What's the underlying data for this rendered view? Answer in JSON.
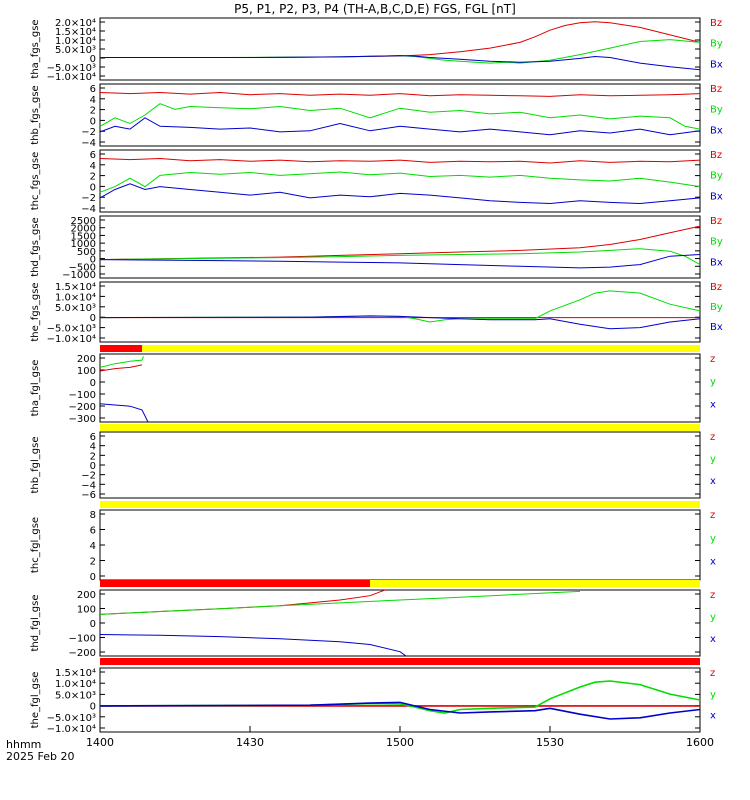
{
  "title": "P5, P1, P2, P3, P4 (TH-A,B,C,D,E) FGS, FGL [nT]",
  "footer": {
    "label1": "hhmm",
    "label2": "2025 Feb 20"
  },
  "colors": {
    "x": "#0000cc",
    "y": "#00dd00",
    "z": "#dd0000",
    "bar_yellow": "#ffff00",
    "bar_red": "#ff0000"
  },
  "chart_data": [
    {
      "type": "line",
      "ylabel": "tha_fgs_gse",
      "yticks": [
        "2.0×10⁴",
        "1.5×10⁴",
        "1.0×10⁴",
        "5.0×10³",
        "0",
        "−5.0×10³",
        "−1.0×10⁴"
      ],
      "ylim": [
        -12000,
        21000
      ],
      "legend": [
        "Bz",
        "By",
        "Bx"
      ],
      "series": [
        {
          "name": "Bz",
          "x": [
            1400,
            1420,
            1440,
            1460,
            1480,
            1500,
            1510,
            1520,
            1530,
            1540,
            1545,
            1550,
            1555,
            1560,
            1565,
            1570,
            1580,
            1590,
            1600
          ],
          "y": [
            0,
            0,
            0,
            50,
            300,
            800,
            1500,
            3000,
            5000,
            8000,
            11000,
            14500,
            17000,
            18500,
            19000,
            18500,
            16000,
            12000,
            8000
          ]
        },
        {
          "name": "By",
          "x": [
            1400,
            1440,
            1480,
            1495,
            1500,
            1505,
            1510,
            1515,
            1520,
            1530,
            1535,
            1540,
            1550,
            1560,
            1570,
            1580,
            1590,
            1600
          ],
          "y": [
            0,
            0,
            300,
            800,
            1000,
            500,
            -500,
            -1500,
            -2000,
            -3000,
            -2500,
            -3000,
            -1500,
            1500,
            5000,
            8500,
            9500,
            8000
          ]
        },
        {
          "name": "Bx",
          "x": [
            1400,
            1450,
            1480,
            1495,
            1500,
            1505,
            1510,
            1520,
            1530,
            1540,
            1550,
            1560,
            1565,
            1570,
            1580,
            1590,
            1600
          ],
          "y": [
            0,
            0,
            300,
            800,
            1000,
            700,
            0,
            -1000,
            -2000,
            -2500,
            -2000,
            -500,
            500,
            0,
            -3000,
            -5000,
            -6500
          ]
        }
      ]
    },
    {
      "type": "line",
      "ylabel": "thb_fgs_gse",
      "yticks": [
        "6",
        "4",
        "2",
        "0",
        "−2",
        "−4"
      ],
      "ylim": [
        -4.5,
        6.5
      ],
      "legend": [
        "Bz",
        "By",
        "Bx"
      ],
      "series": [
        {
          "name": "Bz",
          "x": [
            1400,
            1410,
            1420,
            1430,
            1440,
            1450,
            1460,
            1470,
            1480,
            1490,
            1500,
            1510,
            1520,
            1530,
            1540,
            1550,
            1560,
            1570,
            1580,
            1590,
            1600
          ],
          "y": [
            5,
            4.8,
            5,
            4.7,
            5,
            4.6,
            4.8,
            4.5,
            4.7,
            4.5,
            4.8,
            4.4,
            4.6,
            4.5,
            4.4,
            4.3,
            4.6,
            4.4,
            4.5,
            4.6,
            4.8
          ]
        },
        {
          "name": "By",
          "x": [
            1400,
            1405,
            1410,
            1415,
            1420,
            1425,
            1430,
            1440,
            1450,
            1460,
            1470,
            1480,
            1490,
            1500,
            1510,
            1520,
            1530,
            1540,
            1550,
            1560,
            1570,
            1580,
            1590,
            1595,
            1600
          ],
          "y": [
            -1,
            0.5,
            -0.5,
            1,
            3,
            2,
            2.5,
            2.3,
            2.1,
            2.5,
            1.8,
            2.2,
            0.5,
            2.2,
            1.5,
            1.8,
            1.2,
            1.5,
            0.5,
            1,
            0.3,
            0.8,
            0.5,
            -1,
            -1.5
          ]
        },
        {
          "name": "Bx",
          "x": [
            1400,
            1405,
            1410,
            1415,
            1420,
            1430,
            1440,
            1450,
            1460,
            1470,
            1480,
            1490,
            1500,
            1510,
            1520,
            1530,
            1540,
            1550,
            1560,
            1570,
            1580,
            1590,
            1600
          ],
          "y": [
            -2,
            -1,
            -1.5,
            0.5,
            -1,
            -1.2,
            -1.5,
            -1.3,
            -2,
            -1.8,
            -0.5,
            -1.8,
            -1,
            -1.5,
            -2,
            -1.5,
            -2,
            -2.5,
            -1.8,
            -2.2,
            -1.5,
            -2.5,
            -1.8
          ]
        }
      ]
    },
    {
      "type": "line",
      "ylabel": "thc_fgs_gse",
      "yticks": [
        "6",
        "4",
        "2",
        "0",
        "−2",
        "−4"
      ],
      "ylim": [
        -4.5,
        6.5
      ],
      "legend": [
        "Bz",
        "By",
        "Bx"
      ],
      "series": [
        {
          "name": "Bz",
          "x": [
            1400,
            1410,
            1420,
            1430,
            1440,
            1450,
            1460,
            1470,
            1480,
            1490,
            1500,
            1510,
            1520,
            1530,
            1540,
            1550,
            1560,
            1570,
            1580,
            1590,
            1600
          ],
          "y": [
            5,
            4.8,
            5,
            4.6,
            4.8,
            4.5,
            4.7,
            4.4,
            4.6,
            4.5,
            4.7,
            4.3,
            4.5,
            4.4,
            4.5,
            4.2,
            4.6,
            4.3,
            4.5,
            4.4,
            4.7
          ]
        },
        {
          "name": "By",
          "x": [
            1400,
            1405,
            1410,
            1415,
            1420,
            1430,
            1440,
            1450,
            1460,
            1470,
            1480,
            1490,
            1500,
            1510,
            1520,
            1530,
            1540,
            1550,
            1560,
            1570,
            1580,
            1590,
            1600
          ],
          "y": [
            -1,
            0,
            1.5,
            0,
            2,
            2.5,
            2.2,
            2.5,
            2,
            2.3,
            2.6,
            2.1,
            2.4,
            1.8,
            2,
            1.7,
            2,
            1.5,
            1.2,
            1,
            1.5,
            0.8,
            0
          ]
        },
        {
          "name": "Bx",
          "x": [
            1400,
            1405,
            1410,
            1415,
            1420,
            1430,
            1440,
            1450,
            1460,
            1470,
            1480,
            1490,
            1500,
            1510,
            1520,
            1530,
            1540,
            1550,
            1560,
            1570,
            1580,
            1590,
            1600
          ],
          "y": [
            -2,
            -0.5,
            0.5,
            -0.5,
            0,
            -0.5,
            -1,
            -1.5,
            -1,
            -2,
            -1.5,
            -1.8,
            -1.2,
            -1.5,
            -2,
            -2.5,
            -2.8,
            -3,
            -2.5,
            -2.8,
            -3,
            -2.5,
            -2
          ]
        }
      ]
    },
    {
      "type": "line",
      "ylabel": "thd_fgs_gse",
      "yticks": [
        "2500",
        "2000",
        "1500",
        "1000",
        "500",
        "0",
        "−500",
        "−1000"
      ],
      "ylim": [
        -1100,
        2600
      ],
      "legend": [
        "Bz",
        "By",
        "Bx"
      ],
      "series": [
        {
          "name": "Bz",
          "x": [
            1400,
            1420,
            1440,
            1460,
            1480,
            1500,
            1520,
            1540,
            1560,
            1570,
            1580,
            1590,
            1600
          ],
          "y": [
            0,
            50,
            100,
            150,
            250,
            350,
            450,
            550,
            700,
            900,
            1200,
            1600,
            2000
          ]
        },
        {
          "name": "By",
          "x": [
            1400,
            1420,
            1440,
            1460,
            1480,
            1500,
            1520,
            1540,
            1560,
            1570,
            1580,
            1590,
            1595,
            1600
          ],
          "y": [
            0,
            40,
            80,
            120,
            180,
            250,
            300,
            350,
            450,
            550,
            650,
            500,
            200,
            -300
          ]
        },
        {
          "name": "Bx",
          "x": [
            1400,
            1420,
            1440,
            1460,
            1480,
            1500,
            1520,
            1540,
            1560,
            1570,
            1580,
            1590,
            1600
          ],
          "y": [
            0,
            -30,
            -60,
            -100,
            -150,
            -200,
            -300,
            -400,
            -500,
            -450,
            -300,
            200,
            300
          ]
        }
      ]
    },
    {
      "type": "line",
      "ylabel": "the_fgs_gse",
      "yticks": [
        "1.5×10⁴",
        "1.0×10⁴",
        "5.0×10³",
        "0",
        "−5.0×10³",
        "−1.0×10⁴"
      ],
      "ylim": [
        -11000,
        16000
      ],
      "legend": [
        "Bz",
        "By",
        "Bx"
      ],
      "series": [
        {
          "name": "Bz",
          "x": [
            1400,
            1500,
            1600
          ],
          "y": [
            0,
            0,
            0
          ]
        },
        {
          "name": "By",
          "x": [
            1400,
            1470,
            1490,
            1500,
            1505,
            1510,
            1515,
            1520,
            1530,
            1545,
            1550,
            1560,
            1565,
            1570,
            1580,
            1590,
            1600
          ],
          "y": [
            0,
            200,
            800,
            500,
            -500,
            -2000,
            -1000,
            -500,
            -500,
            -500,
            3000,
            8000,
            11000,
            12000,
            11000,
            6000,
            3000
          ]
        },
        {
          "name": "Bx",
          "x": [
            1400,
            1470,
            1490,
            1500,
            1510,
            1520,
            1530,
            1545,
            1550,
            1560,
            1570,
            1580,
            1590,
            1600
          ],
          "y": [
            0,
            200,
            700,
            500,
            0,
            -500,
            -1000,
            -1000,
            -500,
            -3000,
            -5000,
            -4500,
            -2000,
            -500
          ]
        }
      ]
    },
    {
      "type": "line",
      "ylabel": "tha_fgl_gse",
      "yticks": [
        "200",
        "100",
        "0",
        "−100",
        "−200",
        "−300"
      ],
      "ylim": [
        -330,
        230
      ],
      "legend": [
        "z",
        "y",
        "x"
      ],
      "series": [
        {
          "name": "z",
          "x": [
            1400,
            1405,
            1410,
            1414
          ],
          "y": [
            90,
            110,
            120,
            140
          ]
        },
        {
          "name": "y",
          "x": [
            1400,
            1405,
            1410,
            1414,
            1414.5
          ],
          "y": [
            120,
            150,
            170,
            180,
            210
          ]
        },
        {
          "name": "x",
          "x": [
            1400,
            1405,
            1410,
            1414,
            1416
          ],
          "y": [
            -180,
            -190,
            -200,
            -230,
            -330
          ]
        }
      ],
      "status_bar": [
        {
          "from": 1400,
          "to": 1414,
          "color": "red"
        },
        {
          "from": 1414,
          "to": 1600,
          "color": "yellow"
        }
      ]
    },
    {
      "type": "line",
      "ylabel": "thb_fgl_gse",
      "yticks": [
        "6",
        "4",
        "2",
        "0",
        "−2",
        "−4",
        "−6"
      ],
      "ylim": [
        -7,
        7
      ],
      "legend": [
        "z",
        "y",
        "x"
      ],
      "series": [],
      "status_bar": [
        {
          "from": 1400,
          "to": 1600,
          "color": "yellow"
        }
      ]
    },
    {
      "type": "line",
      "ylabel": "thc_fgl_gse",
      "yticks": [
        "8",
        "6",
        "4",
        "2",
        "0"
      ],
      "ylim": [
        -1,
        9
      ],
      "legend": [
        "z",
        "y",
        "x"
      ],
      "series": [],
      "status_bar": [
        {
          "from": 1400,
          "to": 1600,
          "color": "yellow"
        }
      ]
    },
    {
      "type": "line",
      "ylabel": "thd_fgl_gse",
      "yticks": [
        "200",
        "100",
        "0",
        "−100",
        "−200"
      ],
      "ylim": [
        -230,
        230
      ],
      "legend": [
        "z",
        "y",
        "x"
      ],
      "series": [
        {
          "name": "z",
          "x": [
            1400,
            1420,
            1440,
            1460,
            1480,
            1490,
            1495
          ],
          "y": [
            60,
            80,
            100,
            120,
            160,
            190,
            230
          ]
        },
        {
          "name": "y",
          "x": [
            1400,
            1420,
            1440,
            1460,
            1480,
            1500,
            1520,
            1540,
            1560
          ],
          "y": [
            60,
            80,
            100,
            120,
            140,
            160,
            180,
            200,
            220
          ]
        },
        {
          "name": "x",
          "x": [
            1400,
            1420,
            1440,
            1460,
            1480,
            1490,
            1500,
            1502
          ],
          "y": [
            -80,
            -85,
            -95,
            -110,
            -130,
            -150,
            -200,
            -230
          ]
        }
      ],
      "status_bar": [
        {
          "from": 1400,
          "to": 1490,
          "color": "red"
        },
        {
          "from": 1490,
          "to": 1600,
          "color": "yellow"
        }
      ]
    },
    {
      "type": "line",
      "ylabel": "the_fgl_gse",
      "yticks": [
        "1.5×10⁴",
        "1.0×10⁴",
        "5.0×10³",
        "0",
        "−5.0×10³",
        "−1.0×10⁴"
      ],
      "ylim": [
        -11000,
        16000
      ],
      "legend": [
        "z",
        "y",
        "x"
      ],
      "series": [
        {
          "name": "z",
          "x": [
            1400,
            1500,
            1600
          ],
          "y": [
            0,
            0,
            0
          ]
        },
        {
          "name": "y",
          "x": [
            1400,
            1470,
            1490,
            1500,
            1505,
            1510,
            1515,
            1520,
            1530,
            1545,
            1550,
            1560,
            1565,
            1570,
            1580,
            1590,
            1600
          ],
          "y": [
            0,
            300,
            1000,
            800,
            -500,
            -2000,
            -3000,
            -1500,
            -1000,
            -500,
            3000,
            8000,
            10000,
            10500,
            9000,
            5000,
            2500
          ]
        },
        {
          "name": "x",
          "x": [
            1400,
            1470,
            1490,
            1500,
            1510,
            1520,
            1530,
            1545,
            1550,
            1560,
            1570,
            1580,
            1590,
            1600
          ],
          "y": [
            0,
            300,
            1200,
            1500,
            -1500,
            -3000,
            -2500,
            -2000,
            -1000,
            -3500,
            -5500,
            -5000,
            -3000,
            -1500
          ]
        }
      ],
      "status_bar": [
        {
          "from": 1400,
          "to": 1600,
          "color": "red"
        }
      ]
    }
  ],
  "x_axis": {
    "xlim": [
      1400,
      1600
    ],
    "ticks": [
      "1400",
      "1430",
      "1500",
      "1530",
      "1600"
    ]
  }
}
